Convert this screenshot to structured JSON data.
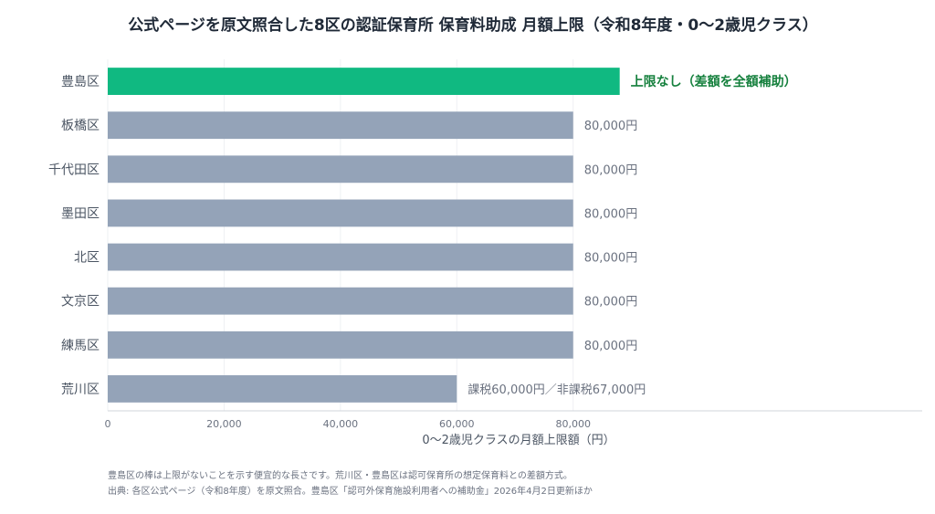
{
  "chart_data": {
    "type": "bar",
    "orientation": "horizontal",
    "title": "公式ページを原文照合した8区の認証保育所 保育料助成 月額上限（令和8年度・0〜2歳児クラス）",
    "xlabel": "0〜2歳児クラスの月額上限額（円）",
    "ylabel": "",
    "xlim": [
      0,
      140000
    ],
    "xticks": [
      0,
      20000,
      40000,
      60000,
      80000
    ],
    "xtick_labels": [
      "0",
      "20,000",
      "40,000",
      "60,000",
      "80,000"
    ],
    "grid": true,
    "categories": [
      "豊島区",
      "板橋区",
      "千代田区",
      "墨田区",
      "北区",
      "文京区",
      "練馬区",
      "荒川区"
    ],
    "values": [
      88000,
      80000,
      80000,
      80000,
      80000,
      80000,
      80000,
      60000
    ],
    "value_labels": [
      "上限なし（差額を全額補助）",
      "80,000円",
      "80,000円",
      "80,000円",
      "80,000円",
      "80,000円",
      "80,000円",
      "課税60,000円／非課税67,000円"
    ],
    "highlight_index": 0,
    "colors": {
      "highlight": "#10b981",
      "default": "#94a3b8",
      "highlight_text": "#15803d"
    }
  },
  "notes": [
    "豊島区の棒は上限がないことを示す便宜的な長さです。荒川区・豊島区は認可保育所の想定保育料との差額方式。",
    "出典: 各区公式ページ（令和8年度）を原文照合。豊島区「認可外保育施設利用者への補助金」2026年4月2日更新ほか"
  ]
}
